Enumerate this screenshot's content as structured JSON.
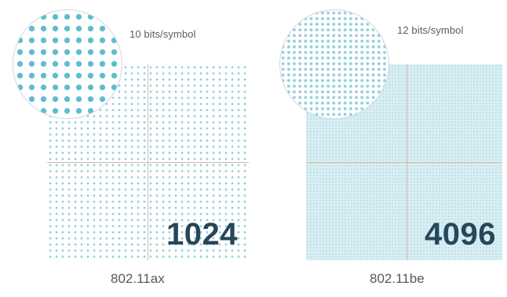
{
  "panels": [
    {
      "standard": "802.11ax",
      "bits_per_symbol": "10 bits/symbol",
      "qam_points": "1024",
      "colors": {
        "dot": "#8fd0dd",
        "zoom_dot": "#5fbcce",
        "axis": "#d7b7a5",
        "count_text": "#26475a"
      }
    },
    {
      "standard": "802.11be",
      "bits_per_symbol": "12 bits/symbol",
      "qam_points": "4096",
      "colors": {
        "background": "#d9eef3",
        "dot": "#b9e0e9",
        "zoom_dot": "#8fcfdb",
        "axis": "#d7b7a5",
        "count_text": "#26475a"
      }
    }
  ]
}
